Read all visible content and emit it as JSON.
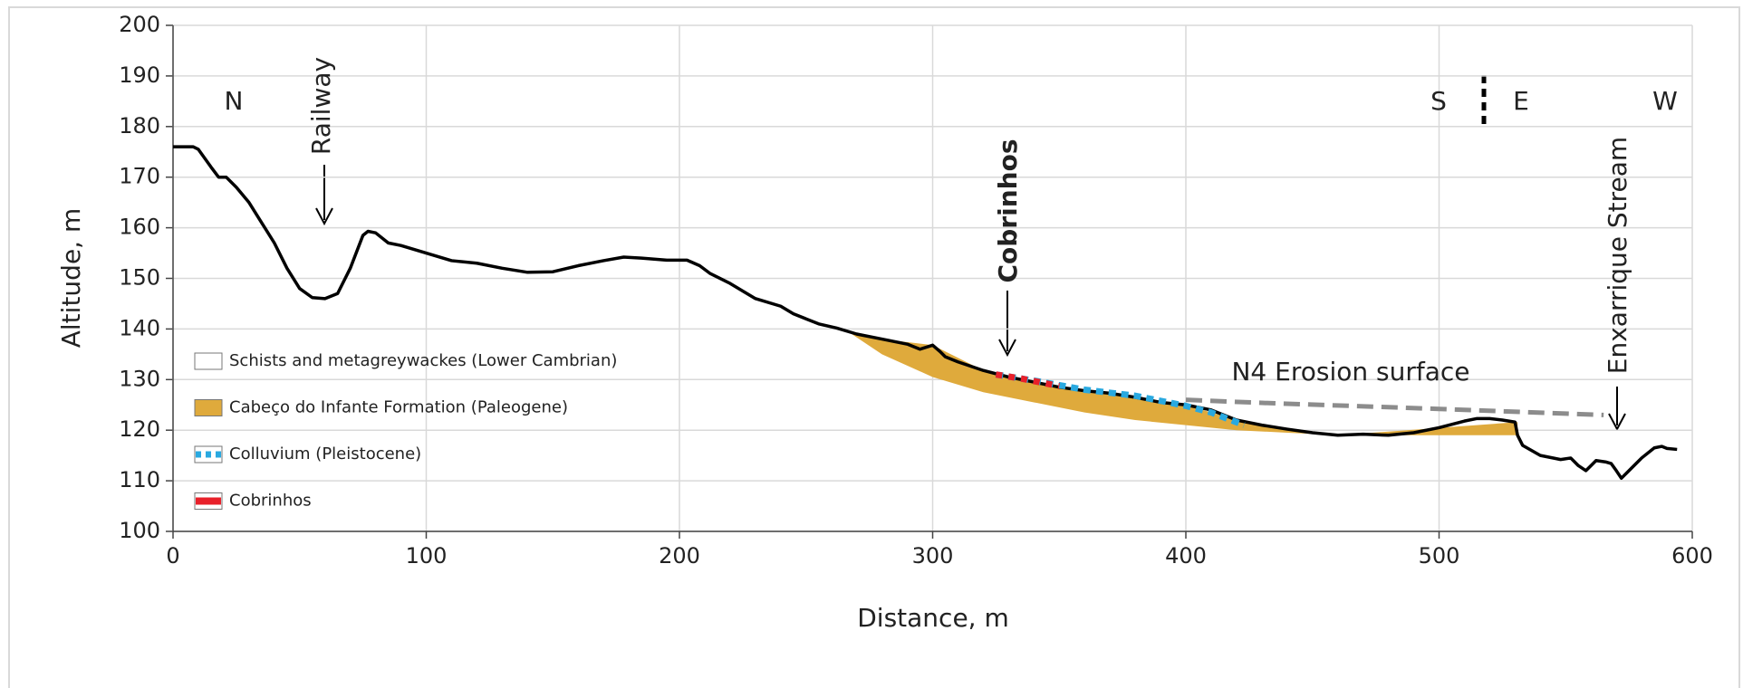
{
  "chart_data": {
    "type": "line",
    "xlabel": "Distance, m",
    "ylabel": "Altitude, m",
    "xlim": [
      0,
      600
    ],
    "xticks": [
      0,
      100,
      200,
      300,
      400,
      500,
      600
    ],
    "ylim": [
      100,
      200
    ],
    "yticks": [
      100,
      110,
      120,
      130,
      140,
      150,
      160,
      170,
      180,
      190,
      200
    ],
    "grid": true,
    "series": [
      {
        "color": "#000000",
        "style": "line",
        "x": [
          0,
          8,
          10,
          15,
          18,
          21,
          25,
          30,
          35,
          40,
          45,
          50,
          55,
          60,
          65,
          70,
          75,
          77,
          80,
          85,
          90,
          100,
          110,
          120,
          130,
          140,
          150,
          160,
          170,
          178,
          185,
          195,
          203,
          208,
          212,
          220,
          230,
          240,
          245,
          250,
          255,
          262,
          270,
          280,
          290,
          295,
          300,
          303,
          305,
          310,
          320,
          330,
          340,
          350,
          360,
          370,
          380,
          390,
          400,
          410,
          420,
          430,
          440,
          450,
          460,
          470,
          480,
          490,
          500,
          510,
          515,
          520,
          525,
          530,
          531,
          533,
          540,
          548,
          552,
          555,
          558,
          560,
          562,
          566,
          568,
          570,
          572,
          576,
          580,
          585,
          588,
          590,
          594
        ],
        "values": [
          176,
          176,
          175.5,
          172,
          170,
          170,
          168,
          165,
          161,
          157,
          152,
          148,
          146.2,
          146,
          147,
          152,
          158.5,
          159.3,
          159,
          157,
          156.5,
          155,
          153.5,
          153,
          152,
          151.2,
          151.3,
          152.5,
          153.5,
          154.2,
          154,
          153.6,
          153.6,
          152.5,
          151,
          149,
          146,
          144.5,
          143,
          142,
          141,
          140.2,
          139,
          138,
          137,
          136,
          136.8,
          135.5,
          134.5,
          133.5,
          131.8,
          130.5,
          129.5,
          128.5,
          127.8,
          127.3,
          126.5,
          125.5,
          125,
          124,
          122,
          121,
          120.2,
          119.5,
          119,
          119.2,
          119,
          119.5,
          120.5,
          121.8,
          122.3,
          122.3,
          122,
          121.6,
          119,
          117,
          115,
          114.2,
          114.5,
          113,
          112,
          113,
          114,
          113.7,
          113.4,
          112,
          110.5,
          112.5,
          114.5,
          116.5,
          116.8,
          116.4,
          116.2
        ]
      },
      {
        "name": "Schists and metagreywackes (Lower Cambrian)",
        "color": "#ffffff",
        "style": "box"
      },
      {
        "name": "Cabeço do Infante Formation (Paleogene)",
        "color": "#dfaa3c",
        "style": "area",
        "x": [
          265,
          280,
          300,
          320,
          340,
          360,
          380,
          400,
          420,
          440,
          460,
          531
        ],
        "values": [
          139.8,
          138,
          136.8,
          131.8,
          129.5,
          127.8,
          126.5,
          125,
          122,
          120.2,
          119,
          121.6
        ],
        "lower": [
          140,
          135,
          130.5,
          127.5,
          125.5,
          123.5,
          122,
          121,
          120,
          119.5,
          119,
          119
        ]
      },
      {
        "name": "Colluvium (Pleistocene)",
        "color": "#29a9e0",
        "style": "dashed",
        "x": [
          325,
          340,
          360,
          380,
          400,
          410,
          423
        ],
        "values": [
          131,
          129.8,
          128,
          126.8,
          124.8,
          123.5,
          121
        ]
      },
      {
        "name": "Cobrinhos",
        "color": "#e8202a",
        "style": "band",
        "x": [
          325,
          335,
          350
        ],
        "values": [
          131,
          130.2,
          128.7
        ]
      }
    ],
    "surface": {
      "label": "N4 Erosion surface",
      "color": "#8c8c8c",
      "x": [
        400,
        430,
        500,
        565
      ],
      "values": [
        126,
        125.4,
        124.2,
        123
      ]
    },
    "annotations": [
      "N",
      "S",
      "E",
      "W",
      "Railway",
      "Cobrinhos",
      "Enxarrique Stream"
    ]
  }
}
